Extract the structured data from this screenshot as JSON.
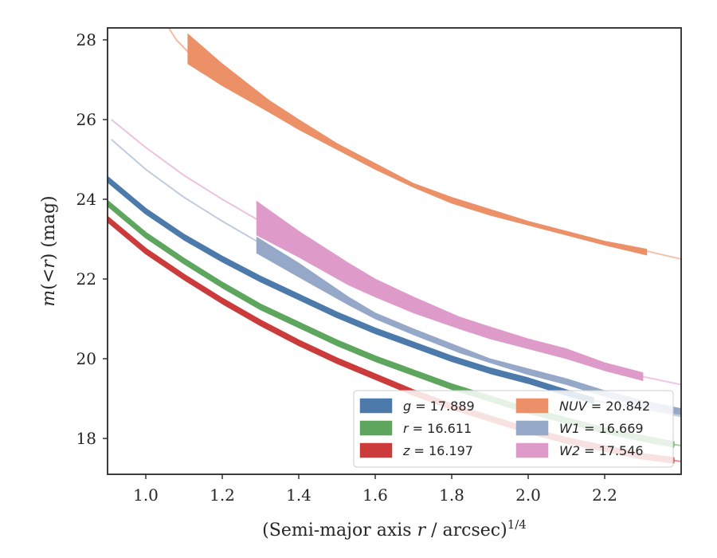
{
  "chart_data": {
    "type": "line",
    "title": "",
    "xlabel_main": "(Semi-major axis ",
    "xlabel_var": "r",
    "xlabel_tail": " / arcsec)",
    "xlabel_exp": "1/4",
    "ylabel_m": "m",
    "ylabel_open": "(<",
    "ylabel_var": "r",
    "ylabel_close": ") (mag)",
    "xlim": [
      0.9,
      2.4
    ],
    "ylim": [
      28.3,
      17.1
    ],
    "y_inverted": true,
    "grid": false,
    "legend_position": "lower-right",
    "legend_columns": 2,
    "xticks": [
      1.0,
      1.2,
      1.4,
      1.6,
      1.8,
      2.0,
      2.2
    ],
    "xtick_labels": [
      "1.0",
      "1.2",
      "1.4",
      "1.6",
      "1.8",
      "2.0",
      "2.2"
    ],
    "yticks": [
      18,
      20,
      22,
      24,
      26,
      28
    ],
    "ytick_labels": [
      "18",
      "20",
      "22",
      "24",
      "26",
      "28"
    ],
    "series": [
      {
        "key": "g",
        "legend_var": "g",
        "legend_value": "17.889",
        "color": "#4c7aab",
        "band_x": [
          0.9,
          1.0,
          1.1,
          1.2,
          1.3,
          1.4,
          1.5,
          1.6,
          1.7,
          1.8,
          1.9,
          2.0,
          2.1,
          2.17
        ],
        "band_y": [
          24.5,
          23.7,
          23.05,
          22.5,
          22.0,
          21.55,
          21.1,
          20.7,
          20.35,
          20.0,
          19.7,
          19.45,
          19.15,
          18.95
        ],
        "band_halfwidth": 0.06,
        "ext_x": [
          2.17,
          2.3,
          2.4
        ],
        "ext_y": [
          18.95,
          18.75,
          18.6
        ]
      },
      {
        "key": "r",
        "legend_var": "r",
        "legend_value": "16.611",
        "color": "#5ea65e",
        "band_x": [
          0.9,
          1.0,
          1.1,
          1.2,
          1.3,
          1.4,
          1.5,
          1.6,
          1.7,
          1.8,
          1.9,
          2.0,
          2.1,
          2.2,
          2.3,
          2.38
        ],
        "band_y": [
          23.9,
          23.1,
          22.45,
          21.85,
          21.3,
          20.85,
          20.4,
          20.0,
          19.65,
          19.3,
          19.0,
          18.7,
          18.45,
          18.2,
          18.0,
          17.85
        ],
        "band_halfwidth": 0.06,
        "ext_x": [
          2.38,
          2.4
        ],
        "ext_y": [
          17.85,
          17.82
        ]
      },
      {
        "key": "z",
        "legend_var": "z",
        "legend_value": "16.197",
        "color": "#cc3b3b",
        "band_x": [
          0.9,
          1.0,
          1.1,
          1.2,
          1.3,
          1.4,
          1.5,
          1.6,
          1.7,
          1.8,
          1.9,
          2.0,
          2.1,
          2.2,
          2.3,
          2.38
        ],
        "band_y": [
          23.5,
          22.7,
          22.05,
          21.45,
          20.9,
          20.4,
          19.95,
          19.55,
          19.15,
          18.8,
          18.5,
          18.2,
          17.95,
          17.75,
          17.55,
          17.45
        ],
        "band_halfwidth": 0.06,
        "ext_x": [
          2.38,
          2.4
        ],
        "ext_y": [
          17.45,
          17.42
        ]
      },
      {
        "key": "NUV",
        "legend_var": "NUV",
        "legend_value": "20.842",
        "color": "#ec9068",
        "pre_x": [
          1.06,
          1.08,
          1.11
        ],
        "pre_y": [
          28.3,
          28.0,
          27.7
        ],
        "band_x": [
          1.11,
          1.2,
          1.32,
          1.4,
          1.5,
          1.6,
          1.7,
          1.8,
          1.9,
          2.0,
          2.1,
          2.2,
          2.31
        ],
        "band_lo": [
          28.15,
          27.4,
          26.5,
          26.0,
          25.4,
          24.9,
          24.4,
          24.05,
          23.75,
          23.45,
          23.2,
          22.95,
          22.75
        ],
        "band_hi": [
          27.4,
          26.85,
          26.2,
          25.75,
          25.25,
          24.75,
          24.3,
          23.9,
          23.6,
          23.35,
          23.1,
          22.85,
          22.6
        ],
        "ext_x": [
          2.31,
          2.4
        ],
        "ext_y": [
          22.7,
          22.5
        ]
      },
      {
        "key": "W1",
        "legend_var": "W1",
        "legend_value": "16.669",
        "color": "#96a8c8",
        "pre_x": [
          0.91,
          1.0,
          1.1,
          1.2,
          1.29
        ],
        "pre_y": [
          25.5,
          24.75,
          24.05,
          23.45,
          22.95
        ],
        "band_x": [
          1.29,
          1.4,
          1.53,
          1.6,
          1.7,
          1.82,
          1.9,
          2.0,
          2.1,
          2.2,
          2.3,
          2.4
        ],
        "band_lo": [
          23.05,
          22.4,
          21.55,
          21.15,
          20.75,
          20.3,
          20.0,
          19.75,
          19.5,
          19.2,
          18.95,
          18.75
        ],
        "band_hi": [
          22.65,
          22.05,
          21.35,
          21.0,
          20.6,
          20.15,
          19.9,
          19.6,
          19.35,
          19.05,
          18.8,
          18.6
        ],
        "ext_x": [
          2.2,
          2.3,
          2.4
        ],
        "ext_y": [
          18.95,
          18.75,
          18.55
        ]
      },
      {
        "key": "W2",
        "legend_var": "W2",
        "legend_value": "17.546",
        "color": "#de9ac8",
        "pre_x": [
          0.91,
          1.0,
          1.1,
          1.2,
          1.29
        ],
        "pre_y": [
          26.0,
          25.3,
          24.6,
          24.0,
          23.5
        ],
        "band_x": [
          1.29,
          1.4,
          1.53,
          1.6,
          1.7,
          1.82,
          1.9,
          2.0,
          2.1,
          2.2,
          2.3
        ],
        "band_lo": [
          23.95,
          23.2,
          22.4,
          22.0,
          21.55,
          21.05,
          20.8,
          20.5,
          20.25,
          19.9,
          19.65
        ],
        "band_hi": [
          23.1,
          22.55,
          21.85,
          21.55,
          21.15,
          20.75,
          20.5,
          20.25,
          20.0,
          19.7,
          19.45
        ],
        "ext_x": [
          2.3,
          2.4
        ],
        "ext_y": [
          19.55,
          19.35
        ]
      }
    ]
  }
}
